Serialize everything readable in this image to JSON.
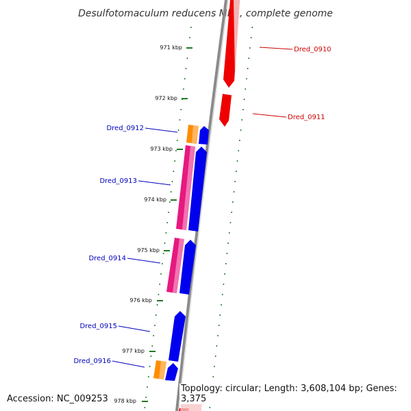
{
  "title": "Desulfotomaculum reducens MI-1, complete genome",
  "footer": {
    "accession_label": "Accession:",
    "accession": "NC_009253",
    "topology_label": "Topology:",
    "topology": "circular",
    "length_label": "Length:",
    "length": "3,608,104 bp",
    "genes_label": "Genes:",
    "genes": "3,375"
  },
  "ticks": [
    "971 kbp",
    "972 kbp",
    "973 kbp",
    "974 kbp",
    "975 kbp",
    "976 kbp",
    "977 kbp",
    "978 kbp"
  ],
  "genes": [
    {
      "label": "Dred_0910",
      "strand": "minus"
    },
    {
      "label": "Dred_0911",
      "strand": "minus"
    },
    {
      "label": "Dred_0912",
      "strand": "plus"
    },
    {
      "label": "Dred_0913",
      "strand": "plus"
    },
    {
      "label": "Dred_0914",
      "strand": "plus"
    },
    {
      "label": "Dred_0915",
      "strand": "plus"
    },
    {
      "label": "Dred_0916",
      "strand": "plus"
    }
  ],
  "colors": {
    "backbone": "#8a8a8a",
    "tick": "#1f7a1f",
    "plus_gene": "#0000ee",
    "minus_gene": "#ee0000",
    "cds_feature": "#e6197f",
    "orange_feature": "#ff8c00",
    "plus_label": "#0000bb",
    "minus_label": "#cc0000"
  }
}
